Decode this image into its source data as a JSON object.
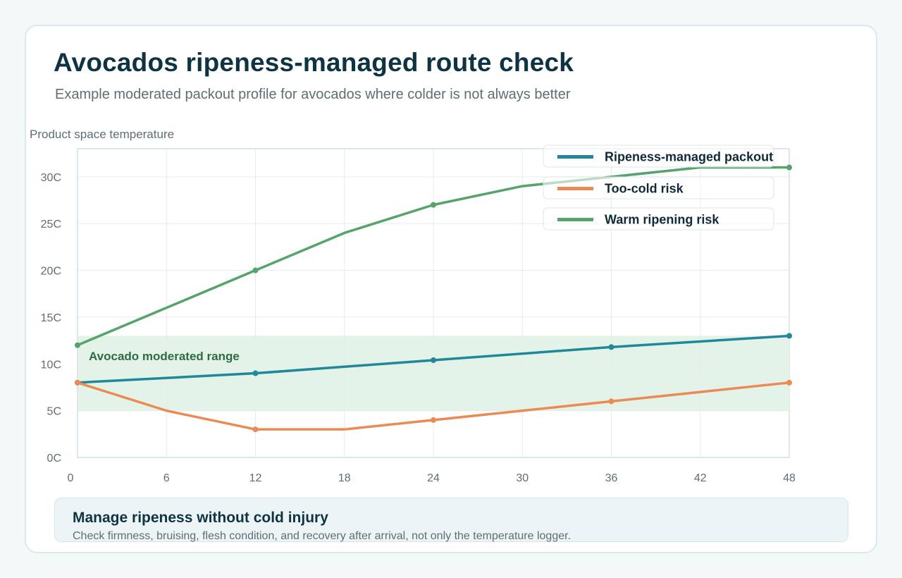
{
  "page": {
    "title": "Avocados ripeness-managed route check",
    "subtitle": "Example moderated packout profile for avocados where colder is not always better"
  },
  "callout": {
    "title": "Manage ripeness without cold injury",
    "body": "Check firmness, bruising, flesh condition, and recovery after arrival, not only the temperature logger."
  },
  "chart_data": {
    "type": "line",
    "title": "",
    "ylabel": "Product space temperature",
    "xlabel": "",
    "x_ticks": [
      0,
      6,
      12,
      18,
      24,
      30,
      36,
      42,
      48
    ],
    "y_ticks": [
      0,
      5,
      10,
      15,
      20,
      25,
      30
    ],
    "y_tick_labels": [
      "0C",
      "5C",
      "10C",
      "15C",
      "20C",
      "25C",
      "30C"
    ],
    "xlim": [
      0,
      48
    ],
    "ylim": [
      0,
      33
    ],
    "grid": true,
    "legend_position": "top-right",
    "band": {
      "label": "Avocado moderated range",
      "low": 5,
      "high": 13,
      "color": "#e3f3e7",
      "label_color": "#2f6b43"
    },
    "series": [
      {
        "name": "Ripeness-managed packout",
        "color": "#21879a",
        "x": [
          0,
          12,
          24,
          36,
          48
        ],
        "y": [
          8,
          9,
          10.4,
          11.8,
          13
        ]
      },
      {
        "name": "Too-cold risk",
        "color": "#ec8a55",
        "x": [
          0,
          6,
          12,
          18,
          24,
          30,
          36,
          42,
          48
        ],
        "y": [
          8,
          5,
          3,
          3,
          4,
          5,
          6,
          7,
          8
        ],
        "markers": [
          0,
          12,
          24,
          36,
          48
        ]
      },
      {
        "name": "Warm ripening risk",
        "color": "#56a36c",
        "x": [
          0,
          6,
          12,
          18,
          24,
          30,
          36,
          42,
          48
        ],
        "y": [
          12,
          16,
          20,
          24,
          27,
          29,
          30,
          31,
          31
        ],
        "markers": [
          0,
          12,
          24,
          48
        ]
      }
    ]
  }
}
